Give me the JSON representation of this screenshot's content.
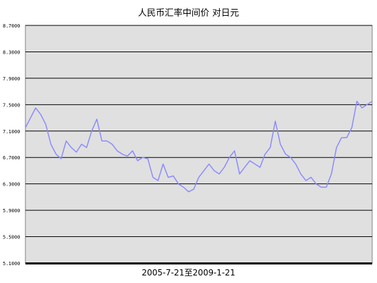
{
  "title": "人民币汇率中间价  对日元",
  "xlabel": "2005-7-21至2009-1-21",
  "colors": {
    "line": "#8a8aff",
    "plot_bg": "#e0e0e0",
    "grid": "#000000"
  },
  "chart_data": {
    "type": "line",
    "title": "人民币汇率中间价  对日元",
    "xlabel": "2005-7-21至2009-1-21",
    "ylabel": "",
    "ylim": [
      5.1,
      8.7
    ],
    "yticks": [
      "8.7000",
      "8.3000",
      "7.9000",
      "7.5000",
      "7.1000",
      "6.7000",
      "6.3000",
      "5.9000",
      "5.5000",
      "5.1000"
    ],
    "grid": true,
    "legend": "none",
    "series": [
      {
        "name": "",
        "values": [
          7.15,
          7.3,
          7.45,
          7.35,
          7.2,
          6.9,
          6.75,
          6.68,
          6.95,
          6.85,
          6.78,
          6.9,
          6.85,
          7.1,
          7.28,
          6.95,
          6.95,
          6.9,
          6.8,
          6.75,
          6.72,
          6.8,
          6.65,
          6.7,
          6.68,
          6.4,
          6.35,
          6.6,
          6.4,
          6.42,
          6.3,
          6.25,
          6.18,
          6.22,
          6.4,
          6.5,
          6.6,
          6.5,
          6.45,
          6.55,
          6.7,
          6.8,
          6.45,
          6.55,
          6.65,
          6.6,
          6.55,
          6.75,
          6.85,
          7.25,
          6.9,
          6.75,
          6.7,
          6.6,
          6.45,
          6.35,
          6.4,
          6.3,
          6.25,
          6.25,
          6.45,
          6.85,
          7.0,
          7.0,
          7.15,
          7.55,
          7.45,
          7.5,
          7.55
        ]
      }
    ]
  }
}
